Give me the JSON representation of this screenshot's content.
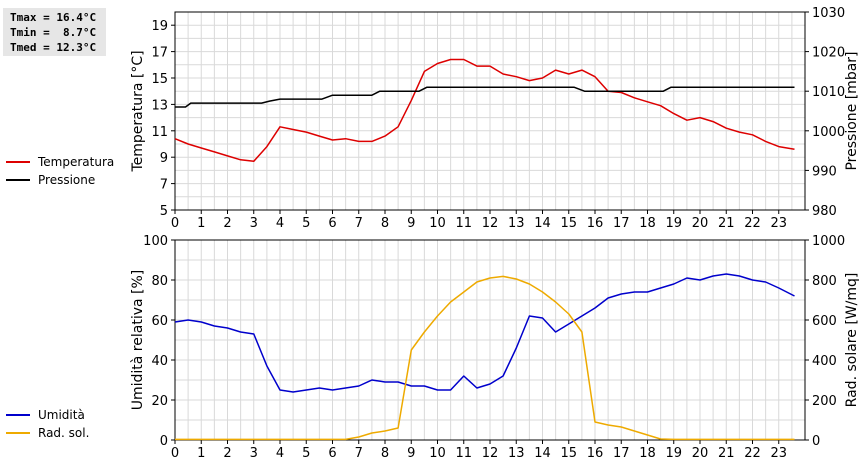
{
  "stats": {
    "tmax": "Tmax = 16.4°C",
    "tmin": "Tmin =  8.7°C",
    "tmed": "Tmed = 12.3°C"
  },
  "chart_data": [
    {
      "type": "line",
      "ylabel": "Temperatura [°C]",
      "y2label": "Pressione [mbar]",
      "xlim": [
        0,
        24
      ],
      "ylim": [
        5,
        20
      ],
      "y2lim": [
        980,
        1030
      ],
      "xticks": [
        "0",
        "1",
        "2",
        "3",
        "4",
        "5",
        "6",
        "7",
        "8",
        "9",
        "10",
        "11",
        "12",
        "13",
        "14",
        "15",
        "16",
        "17",
        "18",
        "19",
        "20",
        "21",
        "22",
        "23"
      ],
      "yticks": [
        "5",
        "7",
        "9",
        "11",
        "13",
        "15",
        "17",
        "19"
      ],
      "y2ticks": [
        "980",
        "990",
        "1000",
        "1010",
        "1020",
        "1030"
      ],
      "grid": true,
      "legend_position": "left",
      "series": [
        {
          "name": "Temperatura",
          "axis": "left",
          "color": "#dd0000",
          "points": [
            [
              0,
              10.4
            ],
            [
              0.5,
              10.0
            ],
            [
              1,
              9.7
            ],
            [
              1.5,
              9.4
            ],
            [
              2,
              9.1
            ],
            [
              2.5,
              8.8
            ],
            [
              3,
              8.7
            ],
            [
              3.5,
              9.8
            ],
            [
              4,
              11.3
            ],
            [
              4.5,
              11.1
            ],
            [
              5,
              10.9
            ],
            [
              5.5,
              10.6
            ],
            [
              6,
              10.3
            ],
            [
              6.5,
              10.4
            ],
            [
              7,
              10.2
            ],
            [
              7.5,
              10.2
            ],
            [
              8,
              10.6
            ],
            [
              8.5,
              11.3
            ],
            [
              9,
              13.3
            ],
            [
              9.5,
              15.5
            ],
            [
              10,
              16.1
            ],
            [
              10.5,
              16.4
            ],
            [
              11,
              16.4
            ],
            [
              11.5,
              15.9
            ],
            [
              12,
              15.9
            ],
            [
              12.5,
              15.3
            ],
            [
              13,
              15.1
            ],
            [
              13.5,
              14.8
            ],
            [
              14,
              15.0
            ],
            [
              14.5,
              15.6
            ],
            [
              15,
              15.3
            ],
            [
              15.5,
              15.6
            ],
            [
              16,
              15.1
            ],
            [
              16.5,
              14.0
            ],
            [
              17,
              13.9
            ],
            [
              17.5,
              13.5
            ],
            [
              18,
              13.2
            ],
            [
              18.5,
              12.9
            ],
            [
              19,
              12.3
            ],
            [
              19.5,
              11.8
            ],
            [
              20,
              12.0
            ],
            [
              20.5,
              11.7
            ],
            [
              21,
              11.2
            ],
            [
              21.5,
              10.9
            ],
            [
              22,
              10.7
            ],
            [
              22.5,
              10.2
            ],
            [
              23,
              9.8
            ],
            [
              23.6,
              9.6
            ]
          ]
        },
        {
          "name": "Pressione",
          "axis": "right",
          "color": "#000000",
          "points": [
            [
              0,
              1006
            ],
            [
              0.4,
              1006
            ],
            [
              0.6,
              1007
            ],
            [
              3.3,
              1007
            ],
            [
              3.6,
              1007.5
            ],
            [
              4,
              1008
            ],
            [
              5.6,
              1008
            ],
            [
              6,
              1009
            ],
            [
              7.5,
              1009
            ],
            [
              7.8,
              1010
            ],
            [
              9.3,
              1010
            ],
            [
              9.6,
              1011
            ],
            [
              15.2,
              1011
            ],
            [
              15.6,
              1010
            ],
            [
              18.6,
              1010
            ],
            [
              18.9,
              1011
            ],
            [
              23.6,
              1011
            ]
          ]
        }
      ]
    },
    {
      "type": "line",
      "ylabel": "Umidità relativa [%]",
      "y2label": "Rad. solare [W/mq]",
      "xlim": [
        0,
        24
      ],
      "ylim": [
        0,
        100
      ],
      "y2lim": [
        0,
        1000
      ],
      "xticks": [
        "0",
        "1",
        "2",
        "3",
        "4",
        "5",
        "6",
        "7",
        "8",
        "9",
        "10",
        "11",
        "12",
        "13",
        "14",
        "15",
        "16",
        "17",
        "18",
        "19",
        "20",
        "21",
        "22",
        "23"
      ],
      "yticks": [
        "0",
        "20",
        "40",
        "60",
        "80",
        "100"
      ],
      "y2ticks": [
        "0",
        "200",
        "400",
        "600",
        "800",
        "1000"
      ],
      "grid": true,
      "legend_position": "left",
      "series": [
        {
          "name": "Umidità",
          "axis": "left",
          "color": "#0000cc",
          "points": [
            [
              0,
              59
            ],
            [
              0.5,
              60
            ],
            [
              1,
              59
            ],
            [
              1.5,
              57
            ],
            [
              2,
              56
            ],
            [
              2.5,
              54
            ],
            [
              3,
              53
            ],
            [
              3.5,
              37
            ],
            [
              4,
              25
            ],
            [
              4.5,
              24
            ],
            [
              5,
              25
            ],
            [
              5.5,
              26
            ],
            [
              6,
              25
            ],
            [
              6.5,
              26
            ],
            [
              7,
              27
            ],
            [
              7.5,
              30
            ],
            [
              8,
              29
            ],
            [
              8.5,
              29
            ],
            [
              9,
              27
            ],
            [
              9.5,
              27
            ],
            [
              10,
              25
            ],
            [
              10.5,
              25
            ],
            [
              11,
              32
            ],
            [
              11.5,
              26
            ],
            [
              12,
              28
            ],
            [
              12.5,
              32
            ],
            [
              13,
              46
            ],
            [
              13.5,
              62
            ],
            [
              14,
              61
            ],
            [
              14.5,
              54
            ],
            [
              15,
              58
            ],
            [
              15.5,
              62
            ],
            [
              16,
              66
            ],
            [
              16.5,
              71
            ],
            [
              17,
              73
            ],
            [
              17.5,
              74
            ],
            [
              18,
              74
            ],
            [
              18.5,
              76
            ],
            [
              19,
              78
            ],
            [
              19.5,
              81
            ],
            [
              20,
              80
            ],
            [
              20.5,
              82
            ],
            [
              21,
              83
            ],
            [
              21.5,
              82
            ],
            [
              22,
              80
            ],
            [
              22.5,
              79
            ],
            [
              23,
              76
            ],
            [
              23.6,
              72
            ]
          ]
        },
        {
          "name": "Rad. sol.",
          "axis": "right",
          "color": "#eeaa00",
          "points": [
            [
              0,
              3
            ],
            [
              6.5,
              3
            ],
            [
              7,
              15
            ],
            [
              7.5,
              35
            ],
            [
              8,
              45
            ],
            [
              8.5,
              60
            ],
            [
              9,
              450
            ],
            [
              9.5,
              540
            ],
            [
              10,
              620
            ],
            [
              10.5,
              690
            ],
            [
              11,
              740
            ],
            [
              11.5,
              790
            ],
            [
              12,
              810
            ],
            [
              12.5,
              818
            ],
            [
              13,
              805
            ],
            [
              13.5,
              780
            ],
            [
              14,
              740
            ],
            [
              14.5,
              690
            ],
            [
              15,
              630
            ],
            [
              15.5,
              540
            ],
            [
              16,
              90
            ],
            [
              16.5,
              75
            ],
            [
              17,
              65
            ],
            [
              17.5,
              45
            ],
            [
              18,
              25
            ],
            [
              18.5,
              5
            ],
            [
              19,
              3
            ],
            [
              23.6,
              3
            ]
          ]
        }
      ]
    }
  ]
}
